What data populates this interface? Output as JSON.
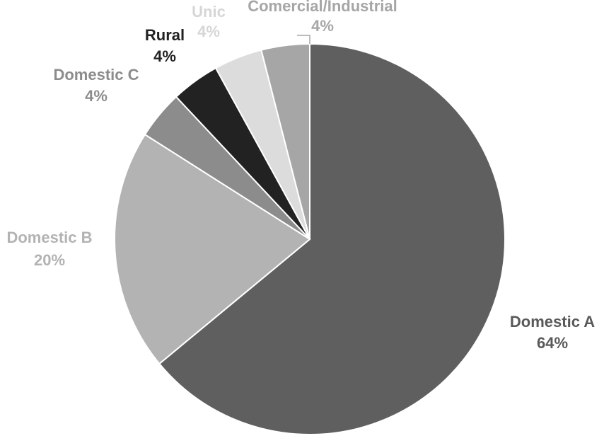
{
  "chart_data": {
    "type": "pie",
    "title": "",
    "slices": [
      {
        "label": "Domestic A",
        "value": 64,
        "value_label": "64%",
        "color": "#5f5f5f",
        "label_color": "#595959"
      },
      {
        "label": "Domestic B",
        "value": 20,
        "value_label": "20%",
        "color": "#b3b3b3",
        "label_color": "#b3b3b3"
      },
      {
        "label": "Domestic C",
        "value": 4,
        "value_label": "4%",
        "color": "#8c8c8c",
        "label_color": "#8c8c8c"
      },
      {
        "label": "Rural",
        "value": 4,
        "value_label": "4%",
        "color": "#222222",
        "label_color": "#222222"
      },
      {
        "label": "Unic",
        "value": 4,
        "value_label": "4%",
        "color": "#dcdcdc",
        "label_color": "#d6d6d6"
      },
      {
        "label": "Comercial/Industrial",
        "value": 4,
        "value_label": "4%",
        "color": "#a6a6a6",
        "label_color": "#a6a6a6"
      }
    ],
    "start_angle_deg": 0,
    "direction": "clockwise",
    "slice_border_color": "#ffffff"
  }
}
